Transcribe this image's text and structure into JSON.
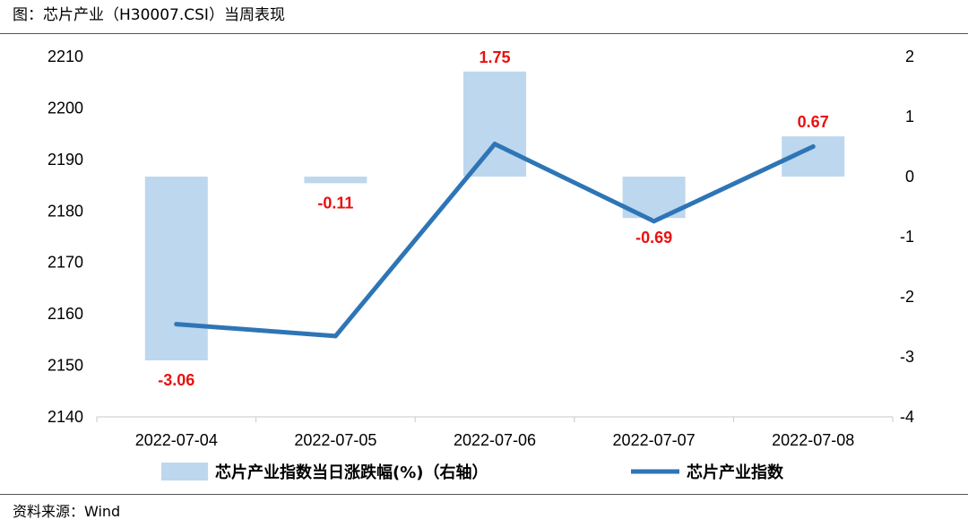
{
  "header": {
    "title": "图：芯片产业（H30007.CSI）当周表现"
  },
  "footer": {
    "source": "资料来源：Wind"
  },
  "colors": {
    "bar": "#bdd7ee",
    "line": "#2e75b6",
    "label": "#e8110f"
  },
  "chart_data": {
    "type": "bar",
    "categories": [
      "2022-07-04",
      "2022-07-05",
      "2022-07-06",
      "2022-07-07",
      "2022-07-08"
    ],
    "series": [
      {
        "name": "芯片产业指数当日涨跌幅(%)（右轴）",
        "type": "bar",
        "axis": "right",
        "values": [
          -3.06,
          -0.11,
          1.75,
          -0.69,
          0.67
        ]
      },
      {
        "name": "芯片产业指数",
        "type": "line",
        "axis": "left",
        "values": [
          2158,
          2155.7,
          2193,
          2178,
          2192.5
        ]
      }
    ],
    "data_labels": [
      "-3.06",
      "-0.11",
      "1.75",
      "-0.69",
      "0.67"
    ],
    "ylim_left": [
      2140,
      2210
    ],
    "yticks_left": [
      "2140",
      "2150",
      "2160",
      "2170",
      "2180",
      "2190",
      "2200",
      "2210"
    ],
    "ylim_right": [
      -4,
      2
    ],
    "yticks_right": [
      "-4",
      "-3",
      "-2",
      "-1",
      "0",
      "1",
      "2"
    ],
    "legend_position": "bottom",
    "grid": false
  }
}
